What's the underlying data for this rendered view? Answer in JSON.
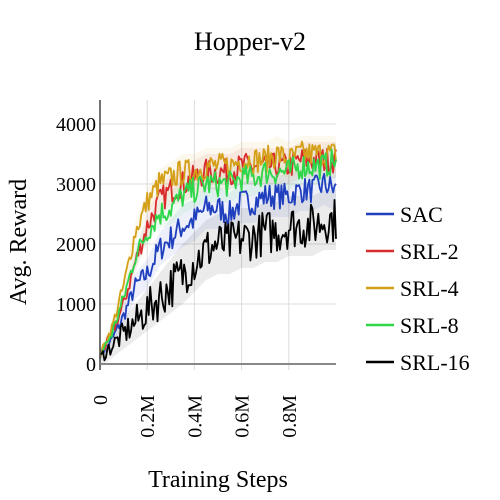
{
  "chart_data": {
    "type": "line",
    "title": "Hopper-v2",
    "xlabel": "Training Steps",
    "ylabel": "Avg. Reward",
    "xlim": [
      0,
      1000000
    ],
    "ylim": [
      -100,
      4400
    ],
    "x_ticks": [
      {
        "value": 0,
        "label": "0"
      },
      {
        "value": 200000,
        "label": "0.2M"
      },
      {
        "value": 400000,
        "label": "0.4M"
      },
      {
        "value": 600000,
        "label": "0.6M"
      },
      {
        "value": 800000,
        "label": "0.8M"
      }
    ],
    "y_ticks": [
      {
        "value": 0,
        "label": "0"
      },
      {
        "value": 1000,
        "label": "1000"
      },
      {
        "value": 2000,
        "label": "2000"
      },
      {
        "value": 3000,
        "label": "3000"
      },
      {
        "value": 4000,
        "label": "4000"
      }
    ],
    "grid": true,
    "legend_position": "right",
    "x": [
      0,
      50000,
      100000,
      150000,
      200000,
      250000,
      300000,
      350000,
      400000,
      450000,
      500000,
      550000,
      600000,
      650000,
      700000,
      750000,
      800000,
      850000,
      900000,
      950000,
      1000000
    ],
    "series": [
      {
        "name": "SAC",
        "color": "#1f3fbf",
        "band": 350,
        "values": [
          150,
          400,
          800,
          1300,
          1500,
          1900,
          2100,
          2300,
          2400,
          2600,
          2600,
          2500,
          2700,
          2700,
          2800,
          2800,
          2800,
          2900,
          2900,
          3000,
          2900
        ]
      },
      {
        "name": "SRL-2",
        "color": "#d92b2b",
        "band": 300,
        "values": [
          150,
          500,
          1000,
          1700,
          2300,
          2700,
          2900,
          3000,
          3100,
          3200,
          3200,
          3200,
          3300,
          3300,
          3300,
          3300,
          3300,
          3400,
          3400,
          3400,
          3400
        ]
      },
      {
        "name": "SRL-4",
        "color": "#d4a017",
        "band": 300,
        "values": [
          150,
          600,
          1300,
          2200,
          2700,
          3000,
          3100,
          3200,
          3200,
          3300,
          3300,
          3300,
          3400,
          3400,
          3400,
          3500,
          3400,
          3500,
          3500,
          3500,
          3500
        ]
      },
      {
        "name": "SRL-8",
        "color": "#2ed64a",
        "band": 300,
        "values": [
          150,
          500,
          1100,
          1800,
          2200,
          2500,
          2600,
          2800,
          2900,
          3000,
          3000,
          3000,
          3100,
          3100,
          3200,
          3200,
          3200,
          3300,
          3300,
          3300,
          3400
        ]
      },
      {
        "name": "SRL-16",
        "color": "#000000",
        "band": 500,
        "values": [
          100,
          300,
          500,
          700,
          900,
          1100,
          1300,
          1500,
          1700,
          1900,
          2000,
          2000,
          2100,
          2100,
          2200,
          2200,
          2300,
          2300,
          2300,
          2400,
          2400
        ]
      }
    ]
  }
}
